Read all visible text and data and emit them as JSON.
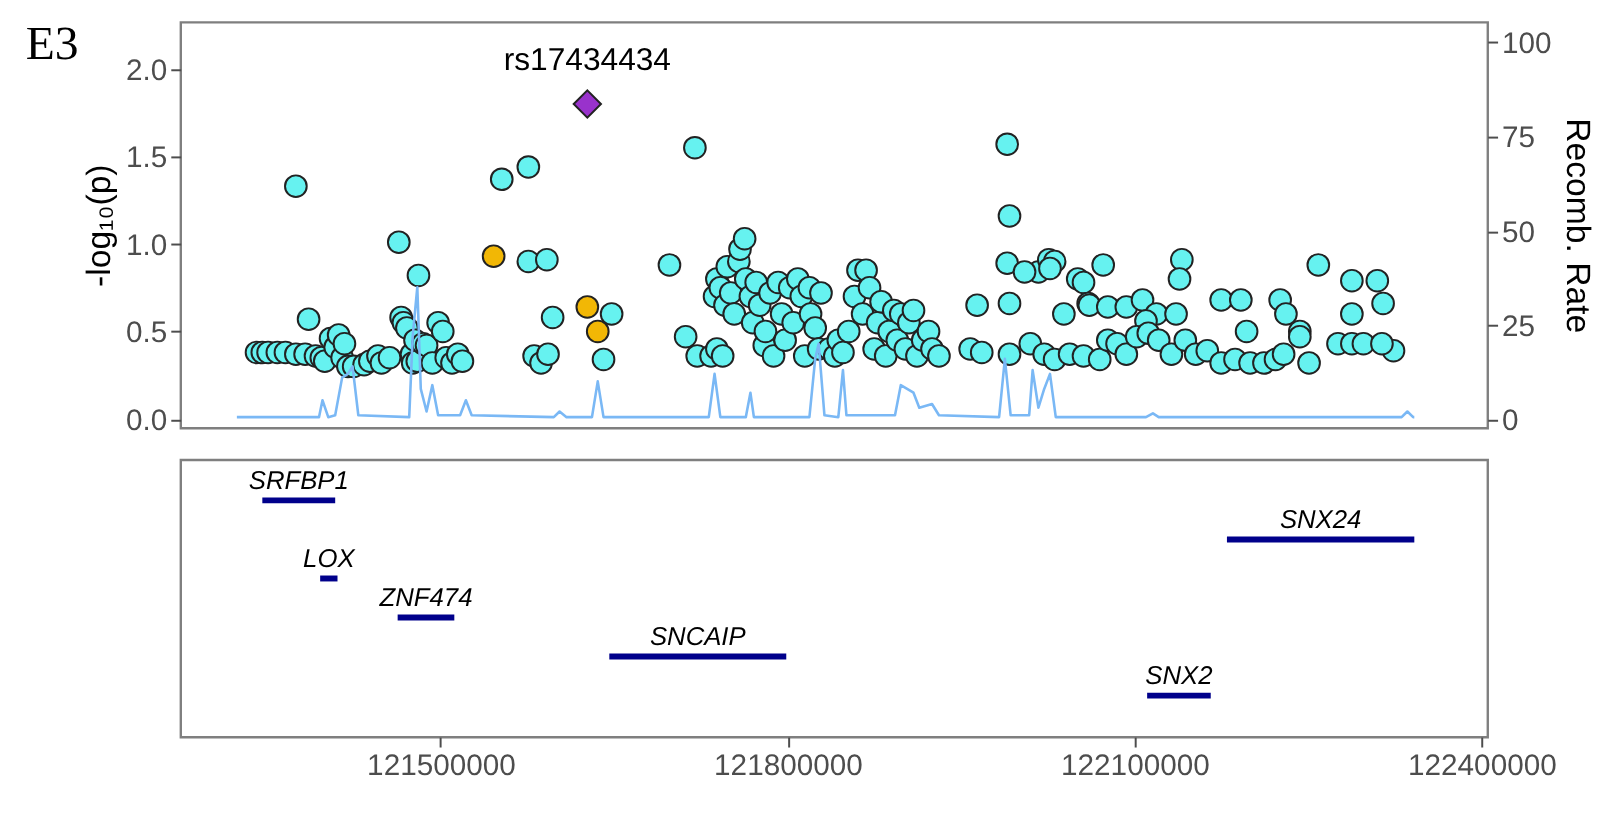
{
  "chart_data": [
    {
      "type": "scatter",
      "ylabel": "-log₁₀(p)",
      "y2label": "Recomb. Rate",
      "annotations": [
        "E3",
        {
          "text": "rs17434434",
          "x": 121627000,
          "y": 1.8
        }
      ],
      "xlim": [
        121275000,
        122405000
      ],
      "ylim": [
        -0.05,
        2.27
      ],
      "yticks": [
        {
          "value": 0,
          "label": "0.0"
        },
        {
          "value": 0.5,
          "label": "0.5"
        },
        {
          "value": 1,
          "label": "1.0"
        },
        {
          "value": 1.5,
          "label": "1.5"
        },
        {
          "value": 2,
          "label": "2.0"
        }
      ],
      "y2lim": [
        -2.3,
        105.5
      ],
      "y2ticks": [
        0,
        25,
        50,
        75,
        100
      ],
      "tick_labels": "y",
      "grid": false,
      "series": [
        {
          "type": "line",
          "axis": "y2",
          "color": "#7ab8f5",
          "line_style": "solid",
          "marker": "none",
          "x": [
            121324000,
            121395000,
            121398000,
            121403000,
            121409000,
            121415000,
            121420000,
            121424000,
            121429000,
            121473000,
            121476000,
            121480000,
            121483000,
            121488000,
            121493000,
            121498000,
            121517000,
            121522000,
            121527000,
            121598000,
            121603000,
            121609000,
            121631000,
            121636000,
            121641000,
            121732000,
            121737000,
            121742000,
            121764000,
            121768000,
            121771000,
            121819000,
            121824000,
            121827000,
            121832000,
            121844000,
            121848000,
            121851000,
            121893000,
            121898000,
            121909000,
            121914000,
            121925000,
            121931000,
            121983000,
            121988000,
            121993000,
            122009000,
            122012000,
            122017000,
            122022000,
            122027000,
            122032000,
            122110000,
            122116000,
            122121000,
            122331000,
            122336000,
            122341000,
            122342000
          ],
          "values": [
            0.5,
            0.5,
            5,
            0.5,
            1,
            11,
            12,
            14,
            1,
            0.5,
            22,
            35,
            8,
            2,
            9,
            1,
            1,
            5,
            1,
            0.5,
            2,
            0.5,
            0.5,
            10,
            0.5,
            0.5,
            12,
            0.5,
            0.5,
            7,
            0.5,
            0.5,
            16,
            20,
            1,
            0.5,
            13,
            1,
            1,
            9,
            7,
            3,
            4,
            1,
            0.5,
            16,
            1,
            1,
            13,
            3,
            8,
            12,
            0.5,
            0.5,
            1.5,
            0.5,
            0.5,
            2,
            0.5,
            0.5
          ]
        },
        {
          "type": "scatter",
          "color": "#66f2f0",
          "marker": "circle",
          "x": [
            121341000,
            121346000,
            121351000,
            121359000,
            121366000,
            121375000,
            121383000,
            121392000,
            121397000,
            121375000,
            121386000,
            121400000,
            121405000,
            121409000,
            121412000,
            121415000,
            121417000,
            121420000,
            121425000,
            121434000,
            121439000,
            121446000,
            121449000,
            121456000,
            121464000,
            121466000,
            121468000,
            121471000,
            121475000,
            121476000,
            121478000,
            121480000,
            121481000,
            121485000,
            121488000,
            121493000,
            121498000,
            121502000,
            121505000,
            121510000,
            121515000,
            121519000,
            121553000,
            121576000,
            121576000,
            121592000,
            121597000,
            121581000,
            121587000,
            121593000,
            121641000,
            121648000,
            121720000,
            121698000,
            121712000,
            121722000,
            121734000,
            121739000,
            121744000,
            121737000,
            121739000,
            121742000,
            121746000,
            121748000,
            121751000,
            121754000,
            121758000,
            121759000,
            121763000,
            121764000,
            121768000,
            121770000,
            121773000,
            121776000,
            121780000,
            121781000,
            121785000,
            121788000,
            121792000,
            121795000,
            121798000,
            121802000,
            121805000,
            121809000,
            121812000,
            121815000,
            121819000,
            121820000,
            121824000,
            121827000,
            121829000,
            121836000,
            121841000,
            121844000,
            121848000,
            121853000,
            121858000,
            121861000,
            121865000,
            121868000,
            121871000,
            121875000,
            121878000,
            121881000,
            121885000,
            121888000,
            121892000,
            121895000,
            121898000,
            121902000,
            121905000,
            121909000,
            121912000,
            121917000,
            121922000,
            121925000,
            121931000,
            121958000,
            121964000,
            121968000,
            121990000,
            121992000,
            121990000,
            121992000,
            121992000,
            122017000,
            122005000,
            122026000,
            122031000,
            122027000,
            122051000,
            122056000,
            122039000,
            122073000,
            122060000,
            122061000,
            122077000,
            122093000,
            122107000,
            122119000,
            122110000,
            122141000,
            122139000,
            122136000,
            122175000,
            122192000,
            122197000,
            122226000,
            122231000,
            122243000,
            122259000,
            122288000,
            122288000,
            122310000,
            122315000,
            122324000,
            122010000,
            122022000,
            122031000,
            122044000,
            122056000,
            122070000,
            122077000,
            122085000,
            122093000,
            122102000,
            122112000,
            122121000,
            122132000,
            122144000,
            122153000,
            122163000,
            122175000,
            122187000,
            122200000,
            122212000,
            122222000,
            122229000,
            122243000,
            122251000,
            122276000,
            122288000,
            122298000,
            122314000
          ],
          "values": [
            0.38,
            0.38,
            0.38,
            0.38,
            0.38,
            0.37,
            0.37,
            0.36,
            0.35,
            1.33,
            0.57,
            0.33,
            0.46,
            0.41,
            0.48,
            0.35,
            0.43,
            0.3,
            0.3,
            0.31,
            0.33,
            0.36,
            0.32,
            0.35,
            1.01,
            0.58,
            0.55,
            0.52,
            0.37,
            0.32,
            0.45,
            0.33,
            0.82,
            0.43,
            0.42,
            0.32,
            0.55,
            0.5,
            0.35,
            0.32,
            0.37,
            0.33,
            1.37,
            1.44,
            0.9,
            0.91,
            0.58,
            0.36,
            0.32,
            0.37,
            0.34,
            0.6,
            1.55,
            0.88,
            0.47,
            0.36,
            0.36,
            0.4,
            0.36,
            0.7,
            0.8,
            0.75,
            0.65,
            0.87,
            0.72,
            0.6,
            0.9,
            0.97,
            1.03,
            0.8,
            0.7,
            0.55,
            0.78,
            0.65,
            0.42,
            0.5,
            0.72,
            0.36,
            0.78,
            0.6,
            0.45,
            0.75,
            0.55,
            0.8,
            0.7,
            0.36,
            0.75,
            0.6,
            0.52,
            0.4,
            0.72,
            0.4,
            0.36,
            0.45,
            0.38,
            0.5,
            0.7,
            0.85,
            0.6,
            0.85,
            0.75,
            0.4,
            0.55,
            0.67,
            0.36,
            0.5,
            0.62,
            0.45,
            0.6,
            0.4,
            0.55,
            0.62,
            0.36,
            0.45,
            0.5,
            0.4,
            0.36,
            0.4,
            0.65,
            0.38,
            1.57,
            1.16,
            0.89,
            0.66,
            0.37,
            0.84,
            0.84,
            0.91,
            0.9,
            0.86,
            0.8,
            0.78,
            0.6,
            0.88,
            0.66,
            0.65,
            0.64,
            0.64,
            0.68,
            0.6,
            0.56,
            0.91,
            0.8,
            0.6,
            0.68,
            0.68,
            0.5,
            0.68,
            0.6,
            0.5,
            0.88,
            0.79,
            0.6,
            0.79,
            0.66,
            0.39,
            0.43,
            0.37,
            0.34,
            0.37,
            0.36,
            0.34,
            0.45,
            0.43,
            0.37,
            0.47,
            0.49,
            0.45,
            0.37,
            0.45,
            0.37,
            0.39,
            0.32,
            0.34,
            0.32,
            0.32,
            0.34,
            0.37,
            0.47,
            0.32,
            0.43,
            0.43,
            0.43,
            0.43
          ]
        },
        {
          "type": "scatter",
          "color": "#f2b705",
          "marker": "circle",
          "x": [
            121546000,
            121627000,
            121636000
          ],
          "values": [
            0.93,
            0.64,
            0.5
          ]
        },
        {
          "type": "scatter",
          "color": "#9932cc",
          "marker": "diamond",
          "x": [
            121627000
          ],
          "values": [
            1.8
          ]
        }
      ]
    },
    {
      "type": "bar",
      "orientation": "horizontal",
      "color": "#00008b",
      "categories": [
        "SRFBP1",
        "SNX24",
        "LOX",
        "ZNF474",
        "SNCAIP",
        "SNX2"
      ],
      "base": [
        121346000,
        122180000,
        121396000,
        121463000,
        121646000,
        122111000
      ],
      "values": [
        63000,
        162000,
        15000,
        49000,
        153000,
        55000
      ],
      "xlim": [
        121275000,
        122405000
      ],
      "xticks": [
        121500000,
        121800000,
        122100000,
        122400000
      ],
      "tick_labels": "x",
      "grid": false
    }
  ]
}
